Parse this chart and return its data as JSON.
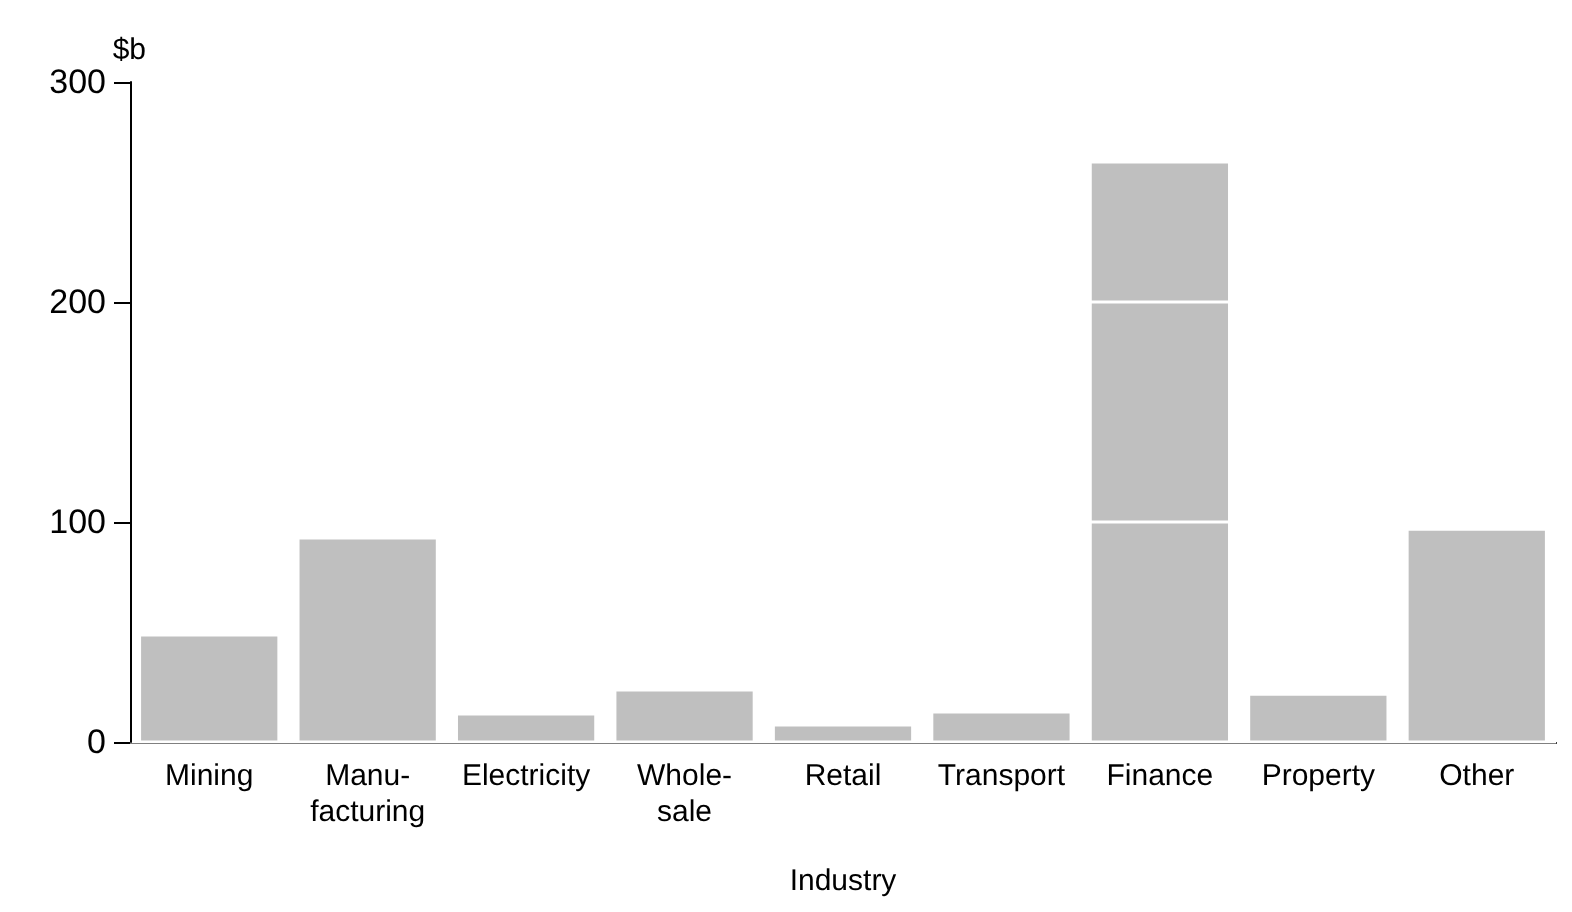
{
  "chart_data": {
    "type": "bar",
    "xlabel": "Industry",
    "ylabel": "$b",
    "categories": [
      "Mining",
      "Manu-\nfacturing",
      "Electricity",
      "Whole-\nsale",
      "Retail",
      "Transport",
      "Finance",
      "Property",
      "Other"
    ],
    "values": [
      48,
      92,
      12,
      23,
      7,
      13,
      263,
      21,
      96
    ],
    "color": "#bfbfbf",
    "ylim": [
      0,
      300
    ],
    "yticks": [
      0,
      100,
      200,
      300
    ],
    "grid": "y"
  }
}
